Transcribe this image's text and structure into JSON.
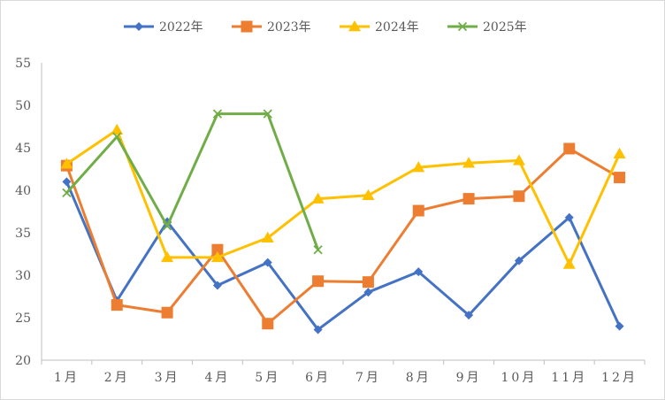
{
  "chart_data": {
    "type": "line",
    "title": "",
    "xlabel": "",
    "ylabel": "",
    "categories": [
      "1月",
      "2月",
      "3月",
      "4月",
      "5月",
      "6月",
      "7月",
      "8月",
      "9月",
      "10月",
      "11月",
      "12月"
    ],
    "ylim": [
      20,
      55
    ],
    "yticks": [
      20,
      25,
      30,
      35,
      40,
      45,
      50,
      55
    ],
    "grid": false,
    "legend_position": "top",
    "series": [
      {
        "name": "2022年",
        "color": "#4472c4",
        "marker": "diamond",
        "values": [
          41.0,
          27.0,
          36.3,
          28.8,
          31.5,
          23.6,
          28.0,
          30.4,
          25.3,
          31.7,
          36.8,
          24.0
        ]
      },
      {
        "name": "2023年",
        "color": "#ed7d31",
        "marker": "square",
        "values": [
          42.9,
          26.5,
          25.6,
          33.0,
          24.3,
          29.3,
          29.2,
          37.6,
          39.0,
          39.3,
          44.9,
          41.5
        ]
      },
      {
        "name": "2024年",
        "color": "#ffc000",
        "marker": "triangle",
        "values": [
          43.1,
          47.1,
          32.1,
          32.1,
          34.4,
          39.0,
          39.4,
          42.7,
          43.2,
          43.5,
          31.3,
          44.3
        ]
      },
      {
        "name": "2025年",
        "color": "#70ad47",
        "marker": "x",
        "values": [
          39.7,
          46.3,
          35.8,
          49.0,
          49.0,
          33.0,
          null,
          null,
          null,
          null,
          null,
          null
        ]
      }
    ]
  }
}
